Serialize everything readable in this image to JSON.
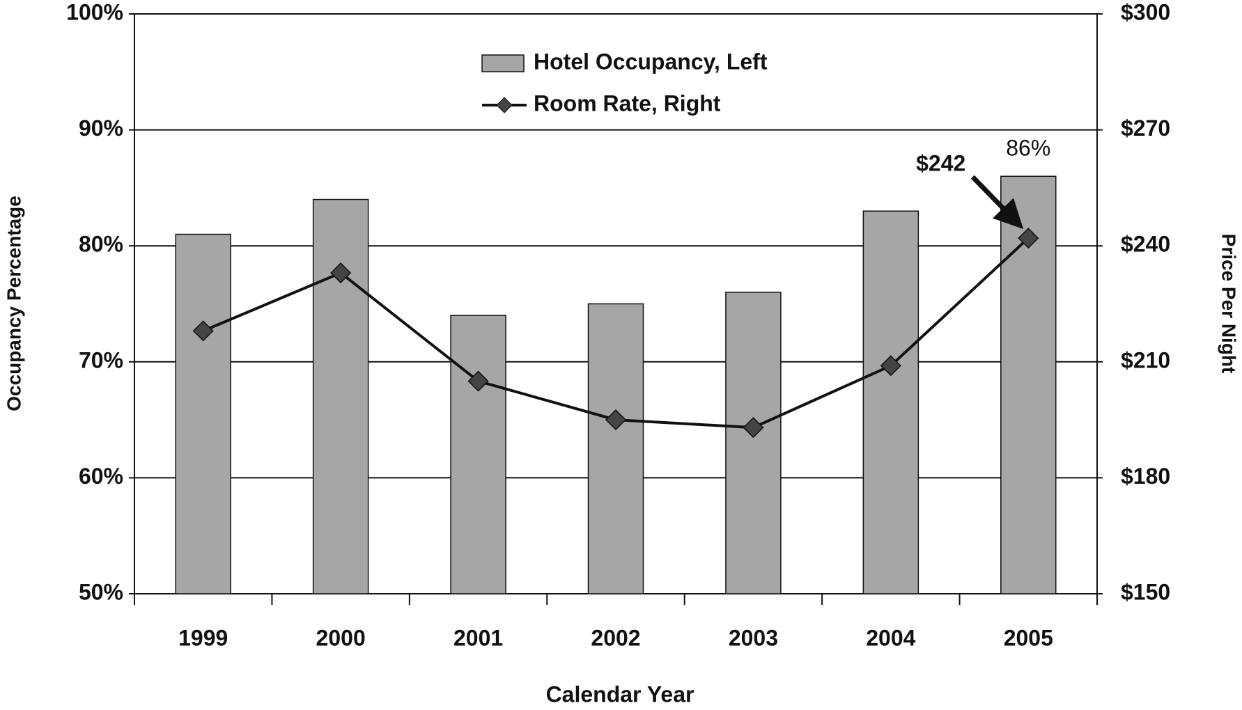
{
  "chart_data": {
    "type": "bar",
    "x_label": "Calendar Year",
    "y_label": "Occupancy Percentage",
    "y2_label": "Price Per Night",
    "categories": [
      "1999",
      "2000",
      "2001",
      "2002",
      "2003",
      "2004",
      "2005"
    ],
    "series": [
      {
        "name": "Hotel Occupancy, Left",
        "type": "bar",
        "color": "#a6a6a6",
        "values": [
          81,
          84,
          74,
          75,
          76,
          83,
          86
        ],
        "value_labels": [
          null,
          null,
          null,
          null,
          null,
          null,
          "86%"
        ]
      },
      {
        "name": "Room Rate, Right",
        "type": "line",
        "axis": "y2",
        "color": "#111111",
        "marker_color": "#444444",
        "values": [
          218,
          233,
          205,
          195,
          193,
          209,
          242
        ],
        "value_labels": [
          null,
          null,
          null,
          null,
          null,
          null,
          "$242"
        ]
      }
    ],
    "ylim": [
      50,
      100
    ],
    "yticks": [
      {
        "value": 50,
        "label": "50%"
      },
      {
        "value": 60,
        "label": "60%"
      },
      {
        "value": 70,
        "label": "70%"
      },
      {
        "value": 80,
        "label": "80%"
      },
      {
        "value": 90,
        "label": "90%"
      },
      {
        "value": 100,
        "label": "100%"
      }
    ],
    "y2lim": [
      150,
      300
    ],
    "y2ticks": [
      {
        "value": 150,
        "label": "$150"
      },
      {
        "value": 180,
        "label": "$180"
      },
      {
        "value": 210,
        "label": "$210"
      },
      {
        "value": 240,
        "label": "$240"
      },
      {
        "value": 270,
        "label": "$270"
      },
      {
        "value": 300,
        "label": "$300"
      }
    ],
    "grid": true,
    "legend": "top"
  }
}
